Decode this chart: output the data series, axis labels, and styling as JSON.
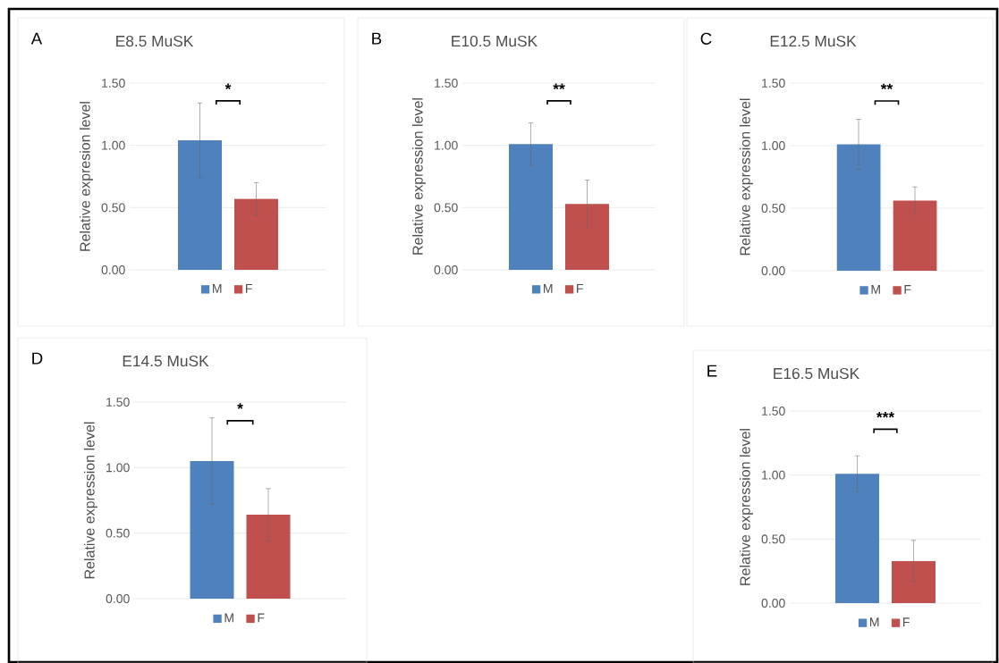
{
  "chart_data": [
    {
      "type": "bar",
      "title": "E8.5 MuSK",
      "ylabel": "Relative expresion level",
      "categories": [
        null
      ],
      "series": [
        {
          "name": "M",
          "color": "#4f81bd",
          "values": [
            1.04
          ],
          "errors": [
            0.3
          ]
        },
        {
          "name": "F",
          "color": "#c0504d",
          "values": [
            0.57
          ],
          "errors": [
            0.13
          ]
        }
      ],
      "ylim": [
        0,
        1.5
      ],
      "yticks": [
        {
          "value": 0,
          "label": "0.00"
        },
        {
          "value": 0.5,
          "label": "0.50"
        },
        {
          "value": 1,
          "label": "1.00"
        },
        {
          "value": 1.5,
          "label": "1.50"
        }
      ],
      "grid": "y",
      "legend": "bottom",
      "annotations": [
        "A",
        "*"
      ]
    },
    {
      "type": "bar",
      "title": "E10.5 MuSK",
      "ylabel": "Relative expression level",
      "categories": [
        null
      ],
      "series": [
        {
          "name": "M",
          "color": "#4f81bd",
          "values": [
            1.01
          ],
          "errors": [
            0.17
          ]
        },
        {
          "name": "F",
          "color": "#c0504d",
          "values": [
            0.53
          ],
          "errors": [
            0.19
          ]
        }
      ],
      "ylim": [
        0,
        1.5
      ],
      "yticks": [
        {
          "value": 0,
          "label": "0.00"
        },
        {
          "value": 0.5,
          "label": "0.50"
        },
        {
          "value": 1,
          "label": "1.00"
        },
        {
          "value": 1.5,
          "label": "1.50"
        }
      ],
      "grid": "y",
      "legend": "bottom",
      "annotations": [
        "B",
        "**"
      ]
    },
    {
      "type": "bar",
      "title": "E12.5 MuSK",
      "ylabel": "Relative expression level",
      "categories": [
        null
      ],
      "series": [
        {
          "name": "M",
          "color": "#4f81bd",
          "values": [
            1.01
          ],
          "errors": [
            0.2
          ]
        },
        {
          "name": "F",
          "color": "#c0504d",
          "values": [
            0.56
          ],
          "errors": [
            0.11
          ]
        }
      ],
      "ylim": [
        0,
        1.5
      ],
      "yticks": [
        {
          "value": 0,
          "label": "0.00"
        },
        {
          "value": 0.5,
          "label": "0.50"
        },
        {
          "value": 1,
          "label": "1.00"
        },
        {
          "value": 1.5,
          "label": "1.50"
        }
      ],
      "grid": "y",
      "legend": "bottom",
      "annotations": [
        "C",
        "**"
      ]
    },
    {
      "type": "bar",
      "title": "E14.5 MuSK",
      "ylabel": "Relative expression level",
      "categories": [
        null
      ],
      "series": [
        {
          "name": "M",
          "color": "#4f81bd",
          "values": [
            1.05
          ],
          "errors": [
            0.33
          ]
        },
        {
          "name": "F",
          "color": "#c0504d",
          "values": [
            0.64
          ],
          "errors": [
            0.2
          ]
        }
      ],
      "ylim": [
        0,
        1.5
      ],
      "yticks": [
        {
          "value": 0,
          "label": "0.00"
        },
        {
          "value": 0.5,
          "label": "0.50"
        },
        {
          "value": 1,
          "label": "1.00"
        },
        {
          "value": 1.5,
          "label": "1.50"
        }
      ],
      "grid": "y",
      "legend": "bottom",
      "annotations": [
        "D",
        "*"
      ]
    },
    {
      "type": "bar",
      "title": "E16.5 MuSK",
      "ylabel": "Relative expression level",
      "categories": [
        null
      ],
      "series": [
        {
          "name": "M",
          "color": "#4f81bd",
          "values": [
            1.01
          ],
          "errors": [
            0.14
          ]
        },
        {
          "name": "F",
          "color": "#c0504d",
          "values": [
            0.33
          ],
          "errors": [
            0.16
          ]
        }
      ],
      "ylim": [
        0,
        1.5
      ],
      "yticks": [
        {
          "value": 0,
          "label": "0.00"
        },
        {
          "value": 0.5,
          "label": "0.50"
        },
        {
          "value": 1,
          "label": "1.00"
        },
        {
          "value": 1.5,
          "label": "1.50"
        }
      ],
      "grid": "y",
      "legend": "bottom",
      "annotations": [
        "E",
        "***"
      ]
    }
  ]
}
